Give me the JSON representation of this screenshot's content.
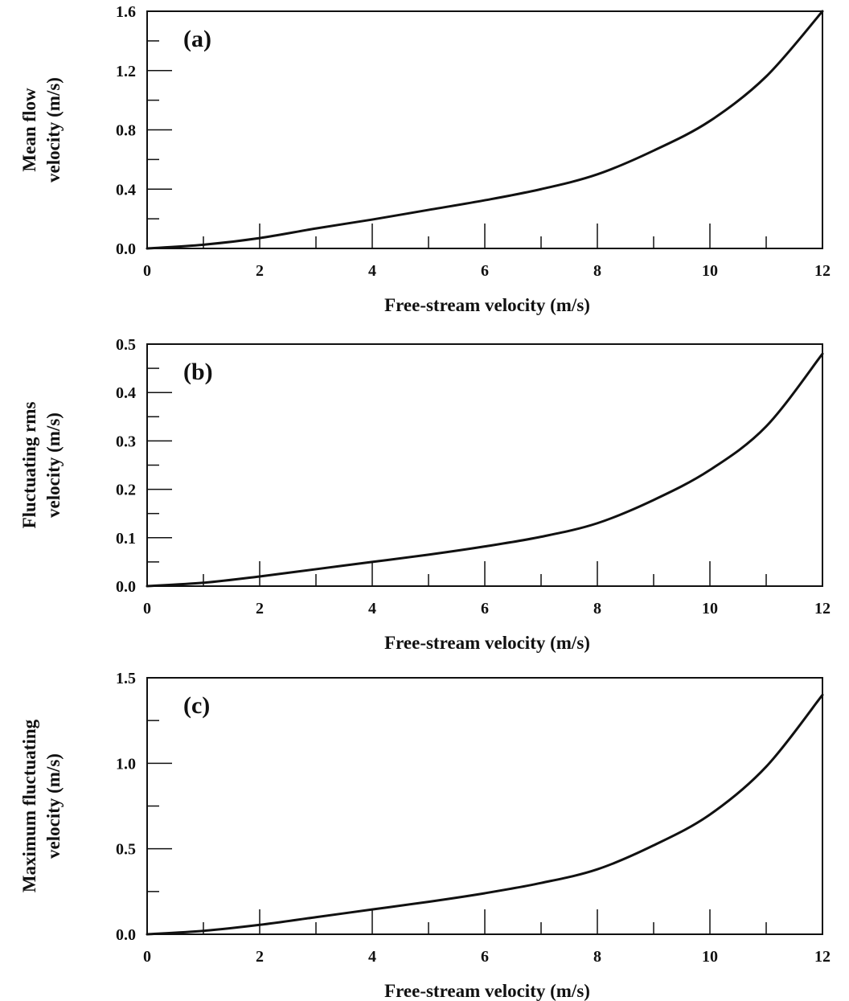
{
  "chart_data": [
    {
      "type": "line",
      "panel_label": "(a)",
      "xlabel": "Free-stream velocity (m/s)",
      "ylabel_lines": [
        "Mean flow",
        "velocity (m/s)"
      ],
      "xlim": [
        0,
        12
      ],
      "ylim": [
        0,
        1.6
      ],
      "xticks": [
        0,
        2,
        4,
        6,
        8,
        10,
        12
      ],
      "xtick_labels": [
        "0",
        "2",
        "4",
        "6",
        "8",
        "10",
        "12"
      ],
      "yticks": [
        0,
        0.4,
        0.8,
        1.2,
        1.6
      ],
      "ytick_labels": [
        "0.0",
        "0.4",
        "0.8",
        "1.2",
        "1.6"
      ],
      "grid": false,
      "series": [
        {
          "x": [
            0,
            1,
            2,
            3,
            4,
            5,
            6,
            7,
            8,
            9,
            10,
            11,
            12
          ],
          "y": [
            0,
            0.025,
            0.07,
            0.135,
            0.195,
            0.26,
            0.325,
            0.4,
            0.5,
            0.66,
            0.86,
            1.16,
            1.6
          ]
        }
      ]
    },
    {
      "type": "line",
      "panel_label": "(b)",
      "xlabel": "Free-stream velocity (m/s)",
      "ylabel_lines": [
        "Fluctuating rms",
        "velocity (m/s)"
      ],
      "xlim": [
        0,
        12
      ],
      "ylim": [
        0,
        0.5
      ],
      "xticks": [
        0,
        2,
        4,
        6,
        8,
        10,
        12
      ],
      "xtick_labels": [
        "0",
        "2",
        "4",
        "6",
        "8",
        "10",
        "12"
      ],
      "yticks": [
        0,
        0.1,
        0.2,
        0.3,
        0.4,
        0.5
      ],
      "ytick_labels": [
        "0.0",
        "0.1",
        "0.2",
        "0.3",
        "0.4",
        "0.5"
      ],
      "grid": false,
      "series": [
        {
          "x": [
            0,
            1,
            2,
            3,
            4,
            5,
            6,
            7,
            8,
            9,
            10,
            11,
            12
          ],
          "y": [
            0,
            0.007,
            0.02,
            0.035,
            0.05,
            0.065,
            0.082,
            0.102,
            0.13,
            0.178,
            0.24,
            0.33,
            0.48
          ]
        }
      ]
    },
    {
      "type": "line",
      "panel_label": "(c)",
      "xlabel": "Free-stream velocity (m/s)",
      "ylabel_lines": [
        "Maximum fluctuating",
        "velocity (m/s)"
      ],
      "xlim": [
        0,
        12
      ],
      "ylim": [
        0,
        1.5
      ],
      "xticks": [
        0,
        2,
        4,
        6,
        8,
        10,
        12
      ],
      "xtick_labels": [
        "0",
        "2",
        "4",
        "6",
        "8",
        "10",
        "12"
      ],
      "yticks": [
        0,
        0.5,
        1.0,
        1.5
      ],
      "ytick_labels": [
        "0.0",
        "0.5",
        "1.0",
        "1.5"
      ],
      "grid": false,
      "series": [
        {
          "x": [
            0,
            1,
            2,
            3,
            4,
            5,
            6,
            7,
            8,
            9,
            10,
            11,
            12
          ],
          "y": [
            0,
            0.02,
            0.055,
            0.1,
            0.145,
            0.19,
            0.24,
            0.3,
            0.38,
            0.52,
            0.7,
            0.98,
            1.4
          ]
        }
      ]
    }
  ]
}
